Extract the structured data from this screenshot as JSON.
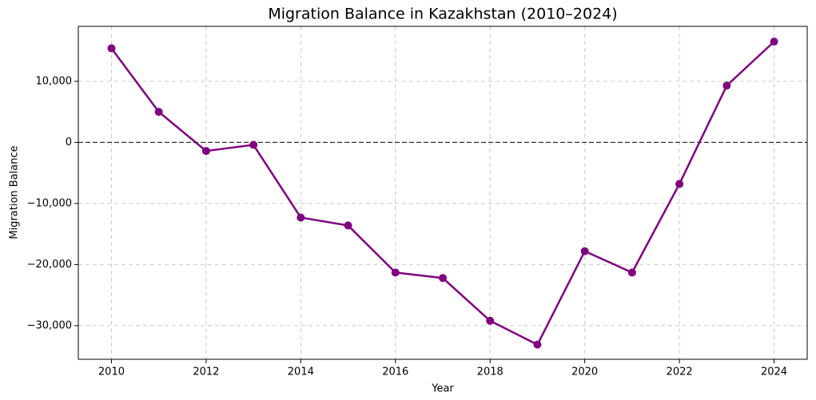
{
  "chart_data": {
    "type": "line",
    "title": "Migration Balance in Kazakhstan (2010–2024)",
    "x_label": "Year",
    "y_label": "Migration Balance",
    "x": [
      2010,
      2011,
      2012,
      2013,
      2014,
      2015,
      2016,
      2017,
      2018,
      2019,
      2020,
      2021,
      2022,
      2023,
      2024
    ],
    "series": [
      {
        "name": "Migration Balance",
        "color": "#800080",
        "values": [
          15400,
          5000,
          -1400,
          -400,
          -12300,
          -13600,
          -21300,
          -22200,
          -29200,
          -33100,
          -17800,
          -21300,
          -6800,
          9300,
          16500
        ]
      }
    ],
    "xlim": [
      2009.3,
      2024.7
    ],
    "xticks": [
      2010,
      2012,
      2014,
      2016,
      2018,
      2020,
      2022,
      2024
    ],
    "ylim": [
      -35500,
      19000
    ],
    "yticks": [
      {
        "value": -30000,
        "label": "−30,000"
      },
      {
        "value": -20000,
        "label": "−20,000"
      },
      {
        "value": -10000,
        "label": "−10,000"
      },
      0,
      {
        "value": 10000,
        "label": "10,000"
      }
    ],
    "reference_line": 0,
    "grid": true
  }
}
